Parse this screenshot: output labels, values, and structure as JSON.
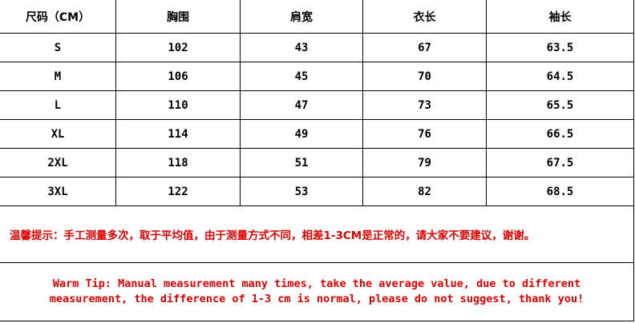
{
  "headers": [
    "尺码（CM）",
    "胸围",
    "肩宽",
    "衣长",
    "袖长"
  ],
  "rows": [
    [
      "S",
      "102",
      "43",
      "67",
      "63.5"
    ],
    [
      "M",
      "106",
      "45",
      "70",
      "64.5"
    ],
    [
      "L",
      "110",
      "47",
      "73",
      "65.5"
    ],
    [
      "XL",
      "114",
      "49",
      "76",
      "66.5"
    ],
    [
      "2XL",
      "118",
      "51",
      "79",
      "67.5"
    ],
    [
      "3XL",
      "122",
      "53",
      "82",
      "68.5"
    ]
  ],
  "tip_cn": "温馨提示：手工测量多次，取于平均值，由于测量方式不同，相差1-3CM是正常的，请大家不要建议，谢谢。",
  "tip_en": "Warm Tip: Manual measurement many times, take the average value, due to different measurement, the difference of 1-3 cm is normal, please do not suggest, thank you!",
  "colors": {
    "tip": "#e00000"
  }
}
